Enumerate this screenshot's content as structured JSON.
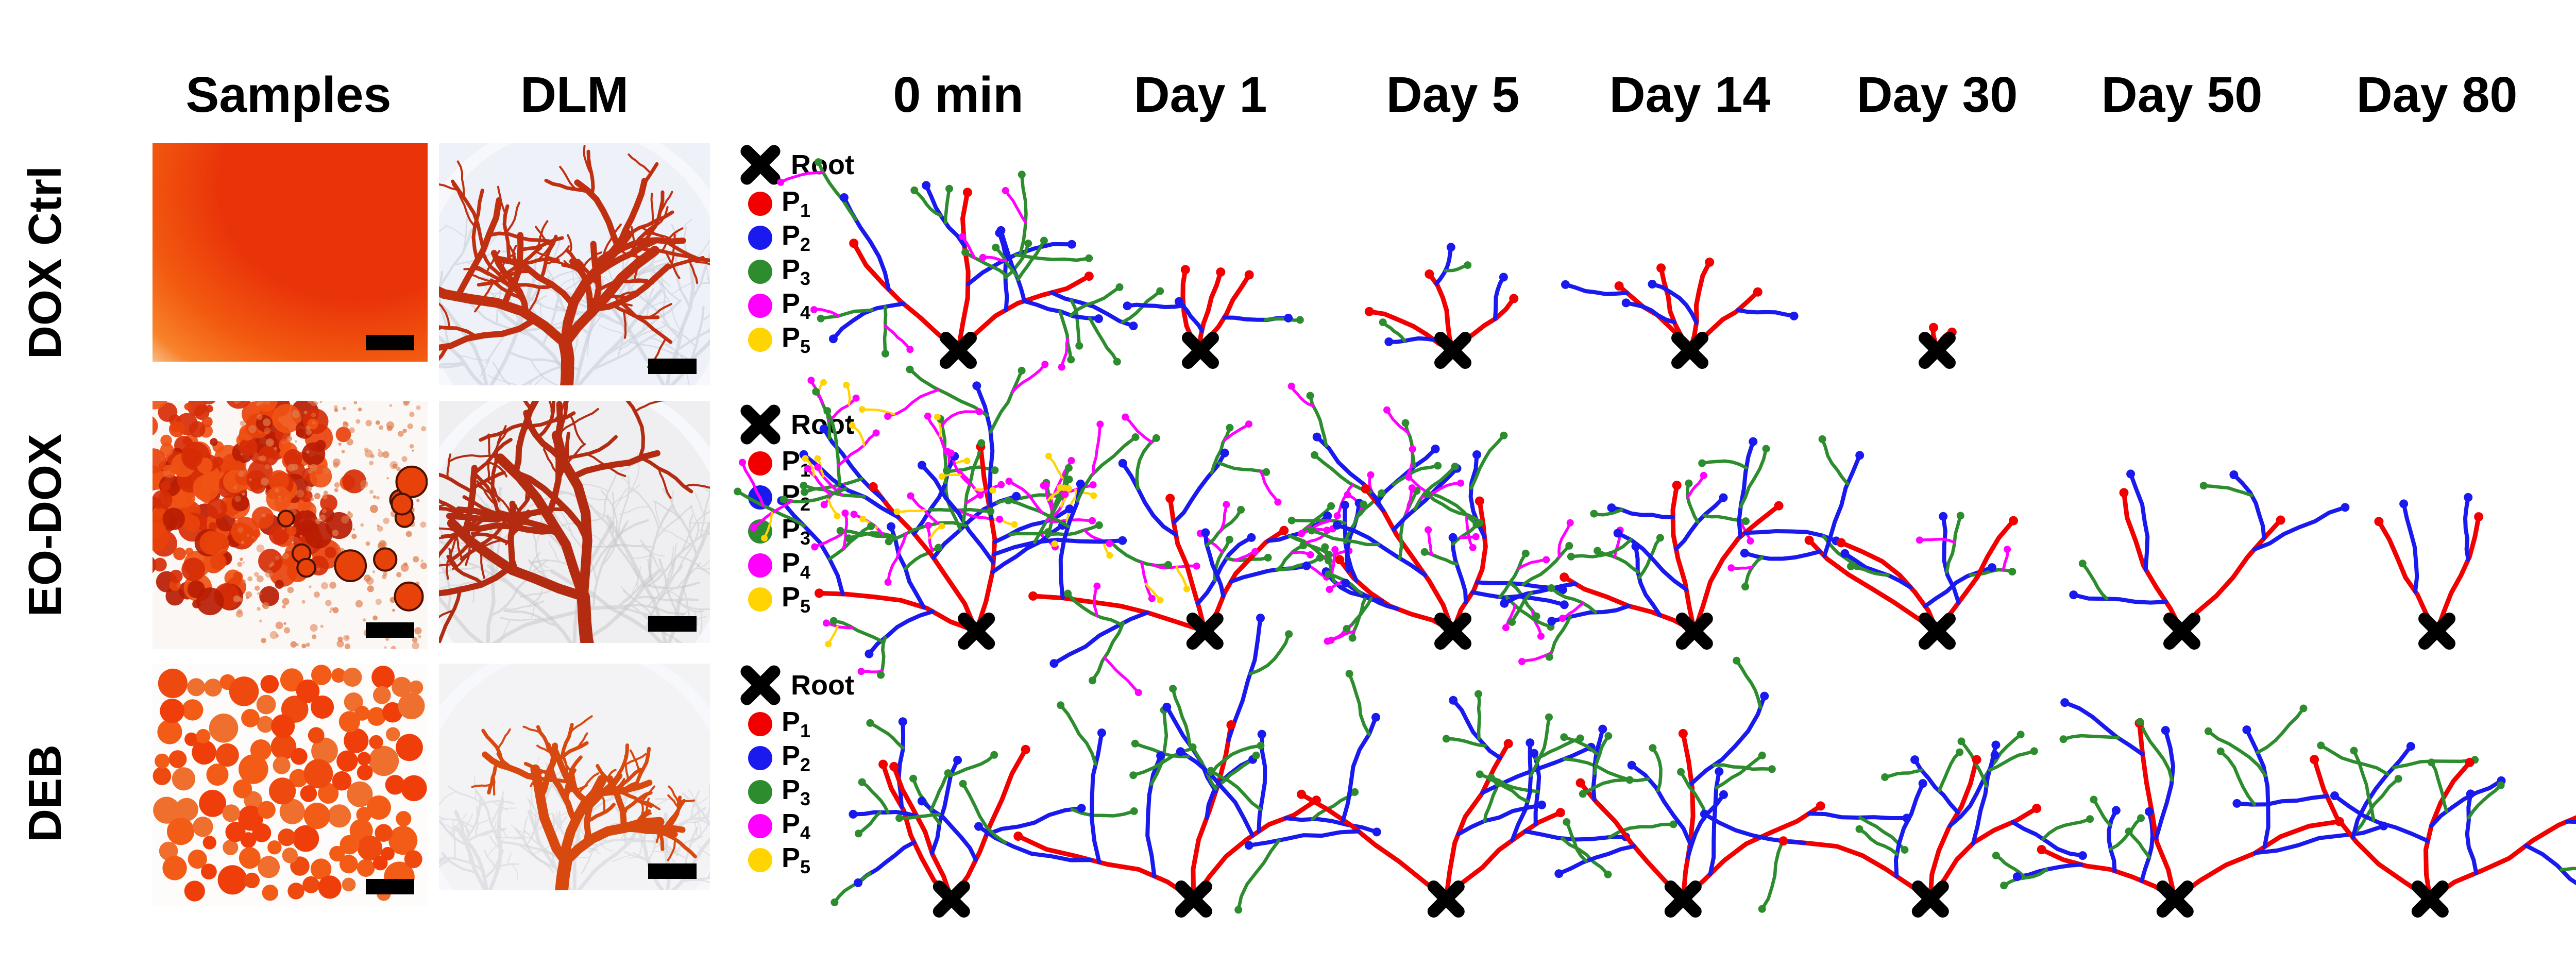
{
  "figure": {
    "columns": [
      "Samples",
      "DLM",
      "0 min",
      "Day 1",
      "Day 5",
      "Day 14",
      "Day 30",
      "Day 50",
      "Day 80"
    ],
    "rows": [
      {
        "label": "DOX Ctrl"
      },
      {
        "label": "EO-DOX"
      },
      {
        "label": "DEB"
      }
    ],
    "legend": {
      "root_label": "Root",
      "items": [
        {
          "base": "P",
          "sub": "1"
        },
        {
          "base": "P",
          "sub": "2"
        },
        {
          "base": "P",
          "sub": "3"
        },
        {
          "base": "P",
          "sub": "4"
        },
        {
          "base": "P",
          "sub": "5"
        }
      ]
    },
    "palette": {
      "root": "#000000",
      "p1": "#f20000",
      "p2": "#1a1aee",
      "p3": "#2d8c2d",
      "p4": "#ff00ff",
      "p5": "#ffd400"
    }
  },
  "trees": {
    "rows": [
      {
        "cells": [
          {
            "seed": 101,
            "pr": 3,
            "len": 290,
            "rootX": 0.5,
            "a0": -0.85,
            "a1": 0.85,
            "k": [
              2.8,
              2.0,
              0.5,
              0
            ]
          },
          {
            "seed": 102,
            "pr": 3,
            "len": 175,
            "rootX": 0.5,
            "a0": -0.8,
            "a1": 0.7,
            "k": [
              1.0,
              0.5,
              0,
              0
            ]
          },
          {
            "seed": 103,
            "pr": 3,
            "len": 170,
            "rootX": 0.5,
            "a0": -0.9,
            "a1": 0.75,
            "k": [
              1.0,
              0.5,
              0,
              0
            ]
          },
          {
            "seed": 104,
            "pr": 4,
            "len": 175,
            "rootX": 0.5,
            "a0": -0.85,
            "a1": 0.8,
            "k": [
              0.8,
              0.25,
              0,
              0
            ]
          },
          {
            "seed": 105,
            "pr": 2,
            "len": 52,
            "rootX": 0.5,
            "a0": -0.5,
            "a1": 0.35,
            "k": [
              0.3,
              0,
              0,
              0
            ]
          },
          null,
          null
        ]
      },
      {
        "cells": [
          {
            "seed": 201,
            "pr": 3,
            "len": 350,
            "rootX": 0.58,
            "a0": -1.15,
            "a1": 0.4,
            "k": [
              3.4,
              2.4,
              1.4,
              0.6
            ]
          },
          {
            "seed": 202,
            "pr": 3,
            "len": 320,
            "rootX": 0.52,
            "a0": -1.05,
            "a1": 0.5,
            "k": [
              3.0,
              2.0,
              1.0,
              0.35
            ]
          },
          {
            "seed": 203,
            "pr": 3,
            "len": 310,
            "rootX": 0.5,
            "a0": -1.05,
            "a1": 0.5,
            "k": [
              2.8,
              1.8,
              0.8,
              0.2
            ]
          },
          {
            "seed": 204,
            "pr": 3,
            "len": 300,
            "rootX": 0.52,
            "a0": -1.0,
            "a1": 0.5,
            "k": [
              2.6,
              1.6,
              0.6,
              0.15
            ]
          },
          {
            "seed": 205,
            "pr": 3,
            "len": 290,
            "rootX": 0.5,
            "a0": -0.95,
            "a1": 0.55,
            "k": [
              2.2,
              1.2,
              0.45,
              0
            ]
          },
          {
            "seed": 206,
            "pr": 2,
            "len": 280,
            "rootX": 0.5,
            "a0": -0.7,
            "a1": 0.5,
            "k": [
              1.8,
              0.5,
              0.1,
              0
            ]
          },
          {
            "seed": 207,
            "pr": 2,
            "len": 230,
            "rootX": 0.5,
            "a0": -0.65,
            "a1": 0.55,
            "k": [
              1.3,
              0.2,
              0,
              0
            ]
          }
        ]
      },
      {
        "cells": [
          {
            "seed": 301,
            "pr": 3,
            "len": 345,
            "rootX": 0.47,
            "a0": -0.9,
            "a1": 0.7,
            "k": [
              2.6,
              1.5,
              0.3,
              0.05
            ]
          },
          {
            "seed": 302,
            "pr": 3,
            "len": 340,
            "rootX": 0.47,
            "a0": -0.9,
            "a1": 0.7,
            "k": [
              2.5,
              1.5,
              0.3,
              0.05
            ]
          },
          {
            "seed": 303,
            "pr": 3,
            "len": 340,
            "rootX": 0.47,
            "a0": -0.9,
            "a1": 0.72,
            "k": [
              2.5,
              1.5,
              0.3,
              0.05
            ]
          },
          {
            "seed": 304,
            "pr": 3,
            "len": 340,
            "rootX": 0.47,
            "a0": -0.88,
            "a1": 0.7,
            "k": [
              2.4,
              1.5,
              0.3,
              0.05
            ]
          },
          {
            "seed": 305,
            "pr": 3,
            "len": 340,
            "rootX": 0.47,
            "a0": -0.9,
            "a1": 0.72,
            "k": [
              2.5,
              1.6,
              0.35,
              0.05
            ]
          },
          {
            "seed": 306,
            "pr": 3,
            "len": 340,
            "rootX": 0.47,
            "a0": -0.9,
            "a1": 0.72,
            "k": [
              2.4,
              1.5,
              0.3,
              0.05
            ]
          },
          {
            "seed": 307,
            "pr": 3,
            "len": 350,
            "rootX": 0.47,
            "a0": -0.88,
            "a1": 0.8,
            "k": [
              2.5,
              1.5,
              0.35,
              0.05
            ]
          }
        ]
      }
    ]
  },
  "panels": {
    "samples": [
      {
        "kind": "droplet",
        "core": "#e93309",
        "mid": "#f25a10",
        "rim": "#f8822a",
        "bg": "#f8f5f1"
      },
      {
        "kind": "emulsion",
        "seed": 91,
        "cluster": [
          "#b91c02",
          "#d62d06",
          "#e8420b",
          "#f05214"
        ],
        "scatter": "#df7a4a",
        "bg": "#fbf7f4"
      },
      {
        "kind": "beads",
        "seed": 92,
        "fills": [
          "#f03e0b",
          "#ee4a10",
          "#f25c17",
          "#ef6f2e"
        ],
        "bg": "#fdfcfb"
      }
    ],
    "dlm": [
      {
        "seed": 81,
        "tint": "#eef2f8",
        "vein": "#c7ccd6",
        "color": "#c03010",
        "rootX": 0.47,
        "a0": -0.8,
        "a1": 0.8,
        "len": 300,
        "k": [
          4.0,
          2.6,
          1.6,
          0
        ]
      },
      {
        "seed": 82,
        "tint": "#efeff2",
        "vein": "#c9c9cd",
        "color": "#b32b10",
        "rootX": 0.55,
        "a0": -1.25,
        "a1": 0.15,
        "len": 330,
        "k": [
          4.2,
          2.6,
          1.4,
          0
        ]
      },
      {
        "seed": 83,
        "tint": "#f3f3f6",
        "vein": "#d2d3d8",
        "color": "#d8490f",
        "rootX": 0.45,
        "a0": -0.35,
        "a1": 0.75,
        "len": 215,
        "k": [
          3.4,
          2.2,
          1.2,
          0
        ]
      }
    ]
  }
}
